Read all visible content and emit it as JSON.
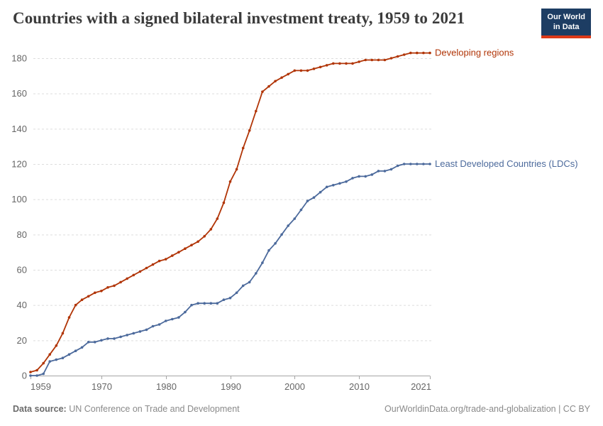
{
  "header": {
    "title": "Countries with a signed bilateral investment treaty, 1959 to 2021",
    "logo": {
      "line1": "Our World",
      "line2": "in Data",
      "bg_color": "#1d3d63",
      "accent_color": "#dc3918"
    }
  },
  "footer": {
    "source_label": "Data source:",
    "source_text": " UN Conference on Trade and Development",
    "credit": "OurWorldinData.org/trade-and-globalization | CC BY"
  },
  "colors": {
    "grid": "#dddddd",
    "axis": "#a5a5a5",
    "tick_label": "#666666"
  },
  "chart_data": {
    "type": "line",
    "title": "Countries with a signed bilateral investment treaty, 1959 to 2021",
    "xlabel": "",
    "ylabel": "",
    "xlim": [
      1959,
      2021
    ],
    "ylim": [
      0,
      185
    ],
    "xticks": [
      1959,
      1970,
      1980,
      1990,
      2000,
      2010,
      2021
    ],
    "yticks": [
      0,
      20,
      40,
      60,
      80,
      100,
      120,
      140,
      160,
      180
    ],
    "grid": true,
    "legend_position": "line-end-labels",
    "marker": "dot",
    "x": [
      1959,
      1960,
      1961,
      1962,
      1963,
      1964,
      1965,
      1966,
      1967,
      1968,
      1969,
      1970,
      1971,
      1972,
      1973,
      1974,
      1975,
      1976,
      1977,
      1978,
      1979,
      1980,
      1981,
      1982,
      1983,
      1984,
      1985,
      1986,
      1987,
      1988,
      1989,
      1990,
      1991,
      1992,
      1993,
      1994,
      1995,
      1996,
      1997,
      1998,
      1999,
      2000,
      2001,
      2002,
      2003,
      2004,
      2005,
      2006,
      2007,
      2008,
      2009,
      2010,
      2011,
      2012,
      2013,
      2014,
      2015,
      2016,
      2017,
      2018,
      2019,
      2020,
      2021
    ],
    "series": [
      {
        "name": "Developing regions",
        "color": "#b13507",
        "values": [
          2,
          3,
          7,
          12,
          17,
          24,
          33,
          40,
          43,
          45,
          47,
          48,
          50,
          51,
          53,
          55,
          57,
          59,
          61,
          63,
          65,
          66,
          68,
          70,
          72,
          74,
          76,
          79,
          83,
          89,
          98,
          110,
          117,
          129,
          139,
          150,
          161,
          164,
          167,
          169,
          171,
          173,
          173,
          173,
          174,
          175,
          176,
          177,
          177,
          177,
          177,
          178,
          179,
          179,
          179,
          179,
          180,
          181,
          182,
          183,
          183,
          183,
          183
        ]
      },
      {
        "name": "Least Developed Countries (LDCs)",
        "color": "#4c6a9c",
        "values": [
          0,
          0,
          1,
          8,
          9,
          10,
          12,
          14,
          16,
          19,
          19,
          20,
          21,
          21,
          22,
          23,
          24,
          25,
          26,
          28,
          29,
          31,
          32,
          33,
          36,
          40,
          41,
          41,
          41,
          41,
          43,
          44,
          47,
          51,
          53,
          58,
          64,
          71,
          75,
          80,
          85,
          89,
          94,
          99,
          101,
          104,
          107,
          108,
          109,
          110,
          112,
          113,
          113,
          114,
          116,
          116,
          117,
          119,
          120,
          120,
          120,
          120,
          120
        ]
      }
    ]
  }
}
